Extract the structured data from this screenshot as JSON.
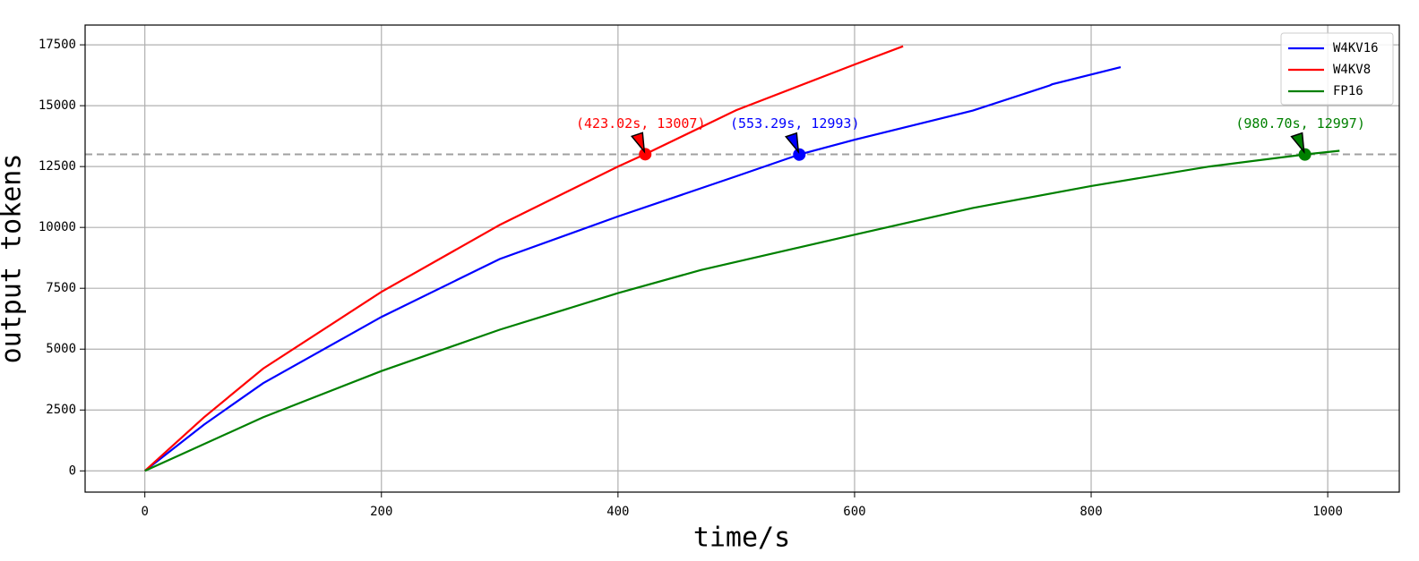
{
  "chart_data": {
    "type": "line",
    "xlabel": "time/s",
    "ylabel": "output tokens",
    "xlim": [
      -50.5,
      1060.5
    ],
    "ylim": [
      -872,
      18312
    ],
    "xticks": [
      0,
      200,
      400,
      600,
      800,
      1000
    ],
    "yticks": [
      0,
      2500,
      5000,
      7500,
      10000,
      12500,
      15000,
      17500
    ],
    "grid": true,
    "legend": "upper right",
    "hline": {
      "value": 13000,
      "color": "#a0a0a0"
    },
    "series": [
      {
        "name": "W4KV16",
        "color": "#0000ff",
        "x": [
          0,
          50,
          100,
          200,
          300,
          400,
          500,
          553.29,
          600,
          700,
          765,
          767,
          825
        ],
        "values": [
          0,
          1900,
          3600,
          6324,
          8700,
          10450,
          12100,
          12993,
          13600,
          14800,
          15830,
          15880,
          16580
        ]
      },
      {
        "name": "W4KV8",
        "color": "#ff0000",
        "x": [
          0,
          50,
          100,
          200,
          300,
          400,
          423.02,
          500,
          600,
          641
        ],
        "values": [
          0,
          2200,
          4200,
          7353,
          10100,
          12500,
          13007,
          14816,
          16690,
          17440
        ]
      },
      {
        "name": "FP16",
        "color": "#008000",
        "x": [
          0,
          100,
          200,
          300,
          400,
          470,
          600,
          700,
          800,
          900,
          980.7,
          1010
        ],
        "values": [
          0,
          2200,
          4100,
          5800,
          7300,
          8250,
          9700,
          10800,
          11700,
          12500,
          12997,
          13150
        ]
      }
    ],
    "annotations": [
      {
        "text": "(553.29s, 12993)",
        "x": 553.29,
        "y": 12993,
        "color": "#0000ff"
      },
      {
        "text": "(423.02s, 13007)",
        "x": 423.02,
        "y": 13007,
        "color": "#ff0000"
      },
      {
        "text": "(980.70s, 12997)",
        "x": 980.7,
        "y": 12997,
        "color": "#008000"
      }
    ]
  }
}
